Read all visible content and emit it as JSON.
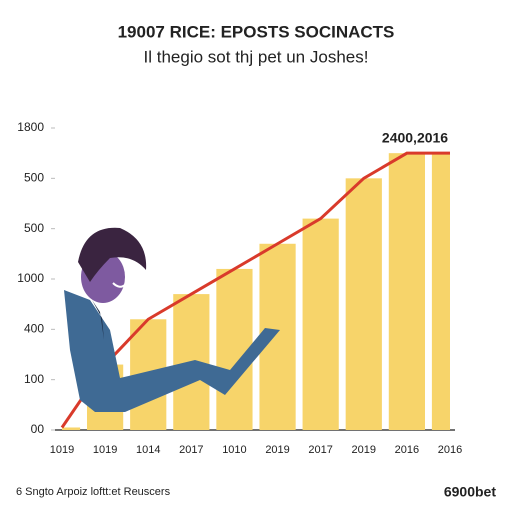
{
  "chart_data": {
    "type": "area",
    "title": "19007 RICE: EPOSTS SOCINACTS",
    "subtitle": "Il thegio sot thj pet un Joshes!",
    "annotation": "2400,2016",
    "footer_left": "6 Sngto Arpoiz loftt:et Reuscers",
    "footer_right": "6900bet",
    "categories": [
      "1019",
      "1019",
      "1014",
      "2017",
      "1010",
      "2019",
      "2017",
      "2019",
      "2016",
      "2016"
    ],
    "values": [
      0.05,
      1.3,
      2.2,
      2.7,
      3.2,
      3.7,
      4.2,
      5.0,
      5.5,
      5.5
    ],
    "color": "#f7d46a",
    "line_color": "#d93a2b",
    "ylim": [
      0,
      6
    ],
    "yticks": [
      {
        "value": 0,
        "label": "00"
      },
      {
        "value": 1,
        "label": "100"
      },
      {
        "value": 2,
        "label": "400"
      },
      {
        "value": 3,
        "label": "1000"
      },
      {
        "value": 4,
        "label": "500"
      },
      {
        "value": 5,
        "label": "500"
      },
      {
        "value": 6,
        "label": "1800"
      }
    ],
    "grid": false
  }
}
